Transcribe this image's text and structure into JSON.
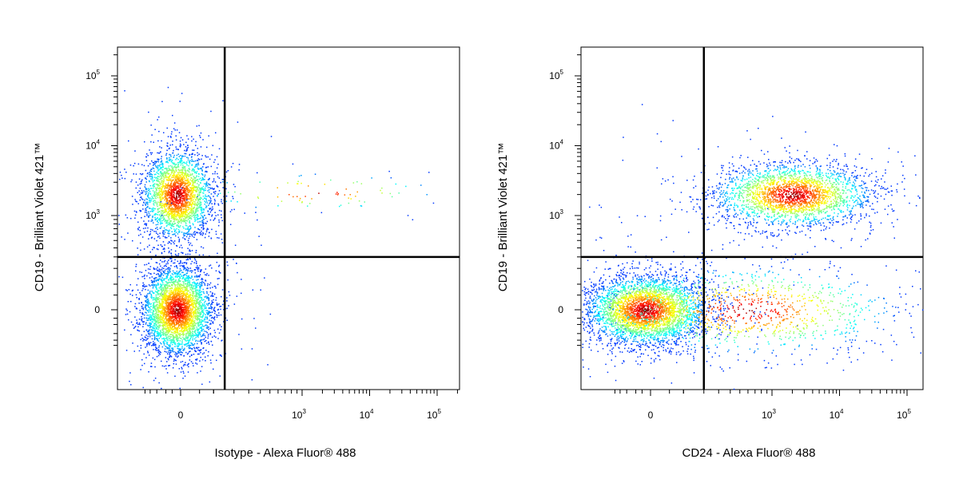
{
  "chart_data": [
    {
      "type": "scatter",
      "panel": "left",
      "xlabel": "Isotype - Alexa Fluor® 488",
      "ylabel": "CD19 - Brilliant Violet 421™",
      "x_scale": "biexponential",
      "y_scale": "biexponential",
      "x_ticks": [
        {
          "value": 0,
          "base": "0",
          "exp": ""
        },
        {
          "value": 1000,
          "base": "10",
          "exp": "3"
        },
        {
          "value": 10000,
          "base": "10",
          "exp": "4"
        },
        {
          "value": 100000,
          "base": "10",
          "exp": "5"
        }
      ],
      "y_ticks": [
        {
          "value": 0,
          "base": "0",
          "exp": ""
        },
        {
          "value": 1000,
          "base": "10",
          "exp": "3"
        },
        {
          "value": 10000,
          "base": "10",
          "exp": "4"
        },
        {
          "value": 100000,
          "base": "10",
          "exp": "5"
        }
      ],
      "quadrant_gate": {
        "x": 150,
        "y": 300
      },
      "populations": [
        {
          "name": "",
          "x_center": -20,
          "y_center": 2000,
          "count": 2600
        },
        {
          "name": "",
          "x_center": -20,
          "y_center": 0,
          "count": 3600
        },
        {
          "name": "",
          "x_center": 1500,
          "y_center": 2200,
          "count": 90
        }
      ]
    },
    {
      "type": "scatter",
      "panel": "right",
      "xlabel": "CD24 - Alexa Fluor® 488",
      "ylabel": "CD19 - Brilliant Violet 421™",
      "x_scale": "biexponential",
      "y_scale": "biexponential",
      "x_ticks": [
        {
          "value": 0,
          "base": "0",
          "exp": ""
        },
        {
          "value": 1000,
          "base": "10",
          "exp": "3"
        },
        {
          "value": 10000,
          "base": "10",
          "exp": "4"
        },
        {
          "value": 100000,
          "base": "10",
          "exp": "5"
        }
      ],
      "y_ticks": [
        {
          "value": 0,
          "base": "0",
          "exp": ""
        },
        {
          "value": 1000,
          "base": "10",
          "exp": "3"
        },
        {
          "value": 10000,
          "base": "10",
          "exp": "4"
        },
        {
          "value": 100000,
          "base": "10",
          "exp": "5"
        }
      ],
      "quadrant_gate": {
        "x": 200,
        "y": 300
      },
      "populations": [
        {
          "name": "",
          "x_center": -30,
          "y_center": 0,
          "count": 3800
        },
        {
          "name": "",
          "x_center": 2000,
          "y_center": 2000,
          "count": 2600
        },
        {
          "name": "",
          "x_center": 600,
          "y_center": 0,
          "count": 1100
        }
      ]
    }
  ]
}
